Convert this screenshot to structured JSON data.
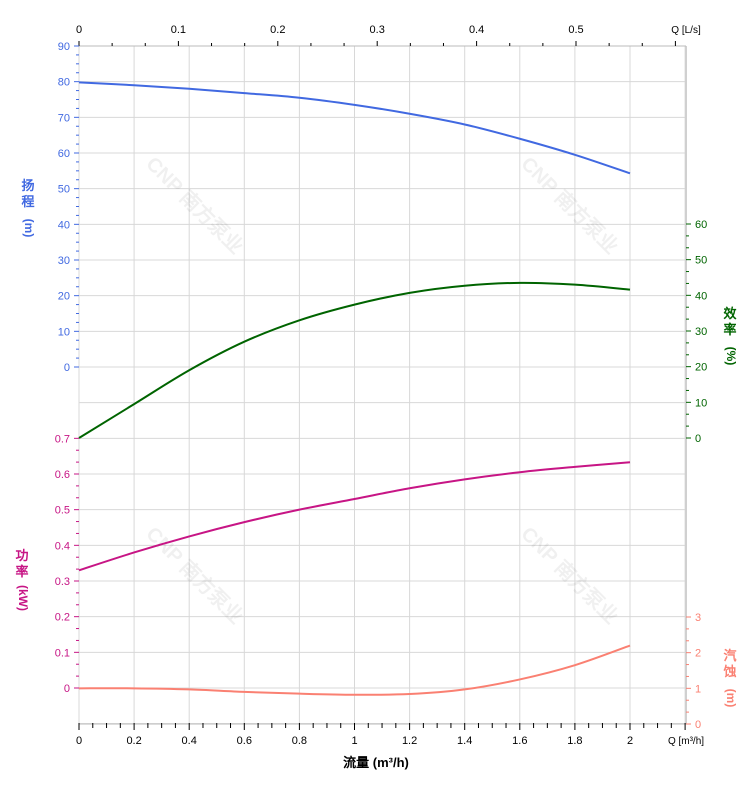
{
  "chart_data": {
    "type": "line",
    "title": "",
    "xlabel": "流量 (m³/h)",
    "x_unit_label": "Q [m³/h]",
    "x_range": [
      0,
      2.2
    ],
    "x_ticks": [
      0,
      0.2,
      0.4,
      0.6,
      0.8,
      1,
      1.2,
      1.4,
      1.6,
      1.8,
      2
    ],
    "top_axis": {
      "unit_label": "Q [L/s]",
      "ticks": [
        0,
        0.1,
        0.2,
        0.3,
        0.4,
        0.5
      ],
      "range": [
        0,
        0.6111
      ]
    },
    "grid": true,
    "axes": {
      "head": {
        "label_chars": [
          "扬",
          "程"
        ],
        "unit": "(m)",
        "side": "left",
        "color": "#4169e1",
        "ticks": [
          0,
          10,
          20,
          30,
          40,
          50,
          60,
          70,
          80,
          90
        ]
      },
      "efficiency": {
        "label_chars": [
          "效",
          "率"
        ],
        "unit": "(%)",
        "side": "right",
        "color": "#006400",
        "ticks": [
          0,
          10,
          20,
          30,
          40,
          50,
          60
        ]
      },
      "power": {
        "label_chars": [
          "功",
          "率"
        ],
        "unit": "(kW)",
        "side": "left",
        "color": "#c71585",
        "ticks": [
          0,
          0.1,
          0.2,
          0.3,
          0.4,
          0.5,
          0.6,
          0.7
        ]
      },
      "npsh": {
        "label_chars": [
          "汽",
          "蚀"
        ],
        "unit": "(m)",
        "side": "right",
        "color": "#fa8072",
        "ticks": [
          0,
          1,
          2,
          3
        ]
      }
    },
    "x": [
      0,
      0.2,
      0.4,
      0.6,
      0.8,
      1.0,
      1.2,
      1.4,
      1.6,
      1.8,
      2.0
    ],
    "series": [
      {
        "axis": "head",
        "color": "#4169e1",
        "values": [
          79.8,
          79.0,
          78.0,
          76.8,
          75.5,
          73.5,
          71.0,
          68.0,
          64.0,
          59.5,
          54.3
        ]
      },
      {
        "axis": "efficiency",
        "color": "#006400",
        "values": [
          0,
          9.5,
          19,
          27,
          33,
          37.4,
          40.7,
          42.7,
          43.5,
          43.0,
          41.6
        ]
      },
      {
        "axis": "power",
        "color": "#c71585",
        "values": [
          0.33,
          0.38,
          0.425,
          0.465,
          0.5,
          0.53,
          0.56,
          0.585,
          0.605,
          0.62,
          0.633
        ]
      },
      {
        "axis": "npsh",
        "color": "#fa8072",
        "values": [
          1.0,
          1.0,
          0.97,
          0.9,
          0.85,
          0.82,
          0.84,
          0.97,
          1.25,
          1.65,
          2.2
        ]
      }
    ]
  },
  "watermark": "CNP 南方泵业"
}
